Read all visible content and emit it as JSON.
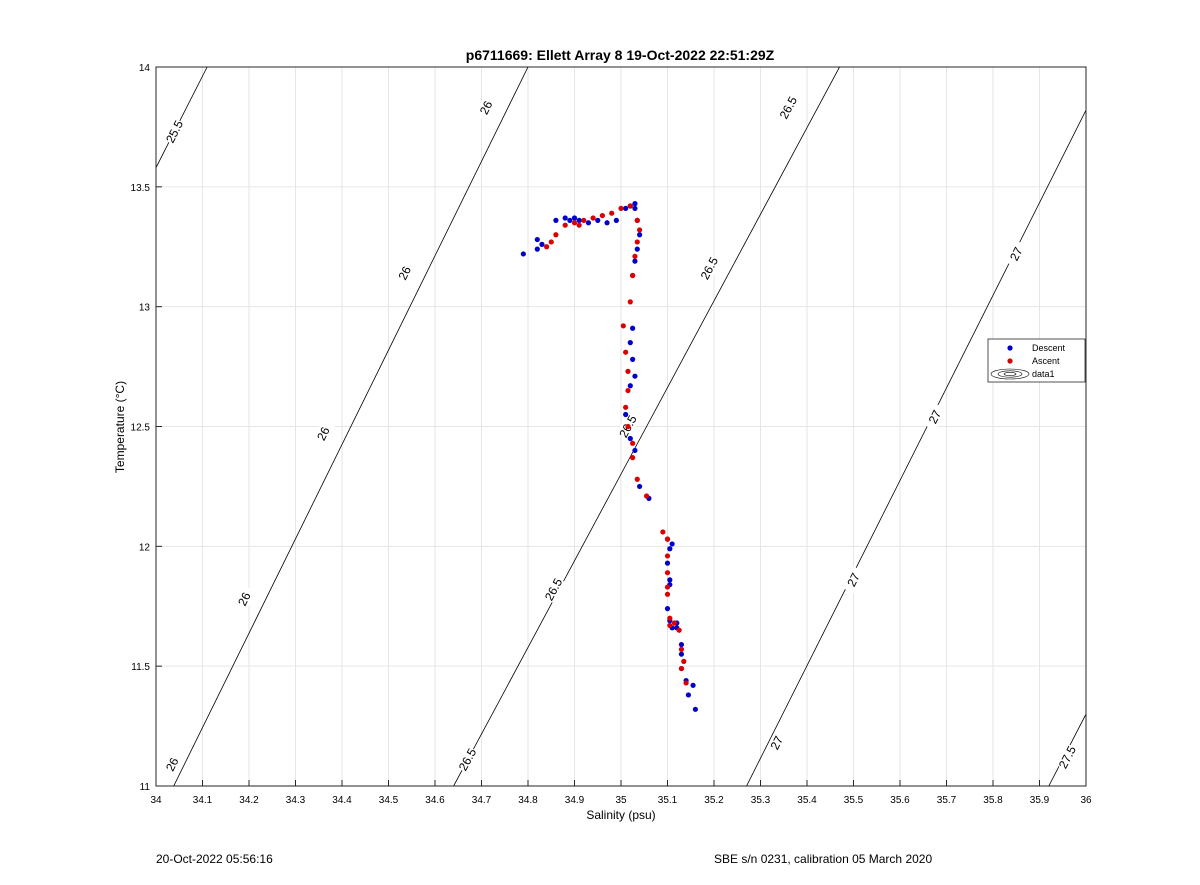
{
  "footer": {
    "left": "20-Oct-2022 05:56:16",
    "right": "SBE s/n 0231, calibration 05 March 2020"
  },
  "colors": {
    "descent": "#0000cc",
    "ascent": "#dd0000",
    "contour": "#000000",
    "grid": "#e6e6e6",
    "axis": "#262626"
  },
  "chart_data": {
    "type": "scatter",
    "title": "p6711669: Ellett Array 8 19-Oct-2022 22:51:29Z",
    "xlabel": "Salinity (psu)",
    "ylabel": "Temperature (°C)",
    "xlim": [
      34,
      36
    ],
    "ylim": [
      11,
      14
    ],
    "grid": true,
    "legend_position": "right",
    "xticks": [
      "34",
      "34.1",
      "34.2",
      "34.3",
      "34.4",
      "34.5",
      "34.6",
      "34.7",
      "34.8",
      "34.9",
      "35",
      "35.1",
      "35.2",
      "35.3",
      "35.4",
      "35.5",
      "35.6",
      "35.7",
      "35.8",
      "35.9",
      "36"
    ],
    "yticks": [
      "11",
      "11.5",
      "12",
      "12.5",
      "13",
      "13.5",
      "14"
    ],
    "series": [
      {
        "name": "Descent",
        "color": "#0000cc",
        "points": [
          [
            34.79,
            13.22
          ],
          [
            34.82,
            13.24
          ],
          [
            34.82,
            13.28
          ],
          [
            34.83,
            13.26
          ],
          [
            34.86,
            13.36
          ],
          [
            34.88,
            13.37
          ],
          [
            34.89,
            13.36
          ],
          [
            34.9,
            13.37
          ],
          [
            34.91,
            13.36
          ],
          [
            34.93,
            13.35
          ],
          [
            34.95,
            13.36
          ],
          [
            34.97,
            13.35
          ],
          [
            34.99,
            13.36
          ],
          [
            35.01,
            13.41
          ],
          [
            35.02,
            13.42
          ],
          [
            35.03,
            13.43
          ],
          [
            35.03,
            13.41
          ],
          [
            35.035,
            13.36
          ],
          [
            35.04,
            13.3
          ],
          [
            35.035,
            13.24
          ],
          [
            35.03,
            13.19
          ],
          [
            35.025,
            13.13
          ],
          [
            35.025,
            12.91
          ],
          [
            35.02,
            12.85
          ],
          [
            35.025,
            12.78
          ],
          [
            35.03,
            12.71
          ],
          [
            35.02,
            12.67
          ],
          [
            35.01,
            12.55
          ],
          [
            35.02,
            12.45
          ],
          [
            35.03,
            12.4
          ],
          [
            35.04,
            12.25
          ],
          [
            35.06,
            12.2
          ],
          [
            35.1,
            12.03
          ],
          [
            35.11,
            12.01
          ],
          [
            35.105,
            11.99
          ],
          [
            35.1,
            11.93
          ],
          [
            35.105,
            11.86
          ],
          [
            35.105,
            11.84
          ],
          [
            35.1,
            11.74
          ],
          [
            35.105,
            11.69
          ],
          [
            35.11,
            11.66
          ],
          [
            35.12,
            11.68
          ],
          [
            35.12,
            11.66
          ],
          [
            35.13,
            11.59
          ],
          [
            35.13,
            11.55
          ],
          [
            35.13,
            11.49
          ],
          [
            35.14,
            11.44
          ],
          [
            35.145,
            11.38
          ],
          [
            35.155,
            11.42
          ],
          [
            35.16,
            11.32
          ]
        ]
      },
      {
        "name": "Ascent",
        "color": "#dd0000",
        "points": [
          [
            34.84,
            13.25
          ],
          [
            34.85,
            13.27
          ],
          [
            34.86,
            13.3
          ],
          [
            34.88,
            13.34
          ],
          [
            34.9,
            13.35
          ],
          [
            34.91,
            13.34
          ],
          [
            34.92,
            13.36
          ],
          [
            34.94,
            13.37
          ],
          [
            34.96,
            13.38
          ],
          [
            34.98,
            13.39
          ],
          [
            35.0,
            13.41
          ],
          [
            35.02,
            13.42
          ],
          [
            35.035,
            13.36
          ],
          [
            35.04,
            13.32
          ],
          [
            35.035,
            13.27
          ],
          [
            35.03,
            13.21
          ],
          [
            35.025,
            13.13
          ],
          [
            35.02,
            13.02
          ],
          [
            35.005,
            12.92
          ],
          [
            35.01,
            12.81
          ],
          [
            35.015,
            12.73
          ],
          [
            35.015,
            12.65
          ],
          [
            35.01,
            12.58
          ],
          [
            35.015,
            12.5
          ],
          [
            35.025,
            12.43
          ],
          [
            35.025,
            12.37
          ],
          [
            35.035,
            12.28
          ],
          [
            35.055,
            12.21
          ],
          [
            35.09,
            12.06
          ],
          [
            35.1,
            12.03
          ],
          [
            35.1,
            11.96
          ],
          [
            35.1,
            11.89
          ],
          [
            35.1,
            11.83
          ],
          [
            35.1,
            11.8
          ],
          [
            35.105,
            11.7
          ],
          [
            35.105,
            11.67
          ],
          [
            35.115,
            11.68
          ],
          [
            35.125,
            11.65
          ],
          [
            35.13,
            11.57
          ],
          [
            35.135,
            11.52
          ],
          [
            35.13,
            11.49
          ],
          [
            35.14,
            11.43
          ]
        ]
      }
    ],
    "legend": [
      "Descent",
      "Ascent",
      "data1"
    ],
    "contours": [
      {
        "label": "25.5",
        "values": [
          [
            34,
            13.58
          ],
          [
            34.11,
            14
          ]
        ],
        "labels_at": [
          [
            34.04,
            13.73
          ]
        ]
      },
      {
        "label": "26",
        "values": [
          [
            34,
            10.85
          ],
          [
            34.8,
            14
          ]
        ],
        "labels_at": [
          [
            34.035,
            11.09
          ],
          [
            34.19,
            11.78
          ],
          [
            34.36,
            12.47
          ],
          [
            34.535,
            13.14
          ],
          [
            34.71,
            13.83
          ]
        ]
      },
      {
        "label": "26.5",
        "values": [
          [
            34.64,
            11
          ],
          [
            35.47,
            14
          ]
        ],
        "labels_at": [
          [
            34.67,
            11.11
          ],
          [
            34.855,
            11.82
          ],
          [
            35.015,
            12.5
          ],
          [
            35.19,
            13.16
          ],
          [
            35.36,
            13.83
          ]
        ]
      },
      {
        "label": "27",
        "values": [
          [
            35.27,
            11
          ],
          [
            36,
            13.82
          ]
        ],
        "labels_at": [
          [
            35.335,
            11.18
          ],
          [
            35.5,
            11.86
          ],
          [
            35.675,
            12.54
          ],
          [
            35.85,
            13.22
          ]
        ]
      },
      {
        "label": "27.5",
        "values": [
          [
            35.92,
            11
          ],
          [
            36,
            11.3
          ]
        ],
        "labels_at": [
          [
            35.96,
            11.12
          ]
        ]
      }
    ]
  }
}
